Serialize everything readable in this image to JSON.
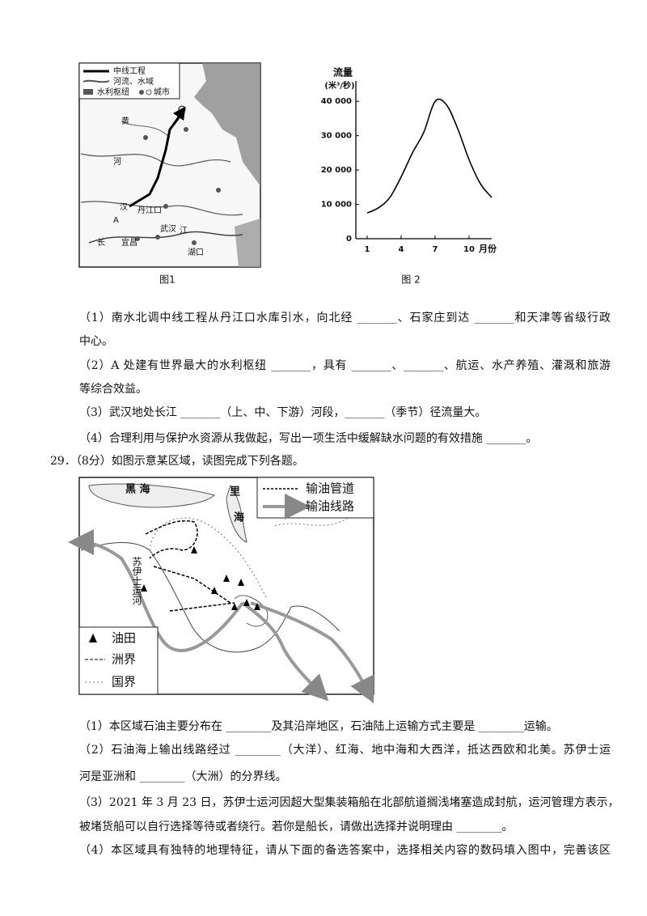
{
  "figure1": {
    "caption": "图1",
    "legend": [
      "中线工程",
      "河流、水域",
      "水利枢纽",
      "城市"
    ],
    "labels": [
      "黄",
      "河",
      "汉",
      "丹江口",
      "A",
      "长",
      "宜昌",
      "武汉",
      "江",
      "湖口"
    ]
  },
  "chart_data": {
    "type": "line",
    "y_label": "流量",
    "y_unit": "(米³/秒)",
    "x_label": "月份",
    "caption": "图 2",
    "x": [
      1,
      2,
      3,
      4,
      5,
      6,
      7,
      8,
      9,
      10,
      11,
      12
    ],
    "values": [
      7500,
      9000,
      12000,
      18000,
      25000,
      31000,
      40000,
      39000,
      32000,
      23000,
      16000,
      12000
    ],
    "color": "#000000",
    "xlim": [
      0,
      12
    ],
    "ylim": [
      0,
      45000
    ],
    "xticks": [
      1,
      4,
      7,
      10
    ],
    "yticks": [
      0,
      {
        "value": 10000,
        "label": "10 000"
      },
      {
        "value": 20000,
        "label": "20 000"
      },
      {
        "value": 30000,
        "label": "30 000"
      },
      {
        "value": 40000,
        "label": "40 000"
      }
    ]
  },
  "q28": {
    "lines": [
      "（1）南水北调中线工程从丹江口水库引水，向北经 _______、石家庄到达 _______和天津等省级行政",
      "中心。",
      "（2）A 处建有世界最大的水利枢纽 _______，具有 _______、_______、航运、水产养殖、灌溉和旅游",
      "等综合效益。",
      "（3）武汉地处长江 _______（上、中、下游）河段，_______（季节）径流量大。",
      "（4）合理利用与保护水资源从我做起，写出一项生活中缓解缺水问题的有效措施 _______。"
    ]
  },
  "q29": {
    "heading": "29．（8分）如图示意某区域，读图完成下列各题。",
    "lines": [
      "（1）本区域石油主要分布在 ________及其沿岸地区，石油陆上运输方式主要是 ________运输。",
      "（2）石油海上输出线路经过 ________（大洋）、红海、地中海和大西洋，抵达西欧和北美。苏伊士运",
      "河是亚洲和 ________（大洲）的分界线。",
      "（3）2021 年 3 月 23 日，苏伊士运河因超大型集装箱船在北部航道搁浅堵塞造成封航，运河管理方表示，",
      "被堵货船可以自行选择等待或者绕行。若你是船长，请做出选择并说明理由 ________。",
      "（4）本区域具有独特的地理特征，请从下面的备选答案中，选择相关内容的数码填入图中，完善该区"
    ]
  },
  "figure3": {
    "legend_top": [
      "输油管道",
      "输油线路"
    ],
    "legend_bottom": [
      "油田",
      "洲界",
      "国界"
    ],
    "labels": [
      "黑 海",
      "里",
      "海",
      "苏伊士运河"
    ]
  }
}
